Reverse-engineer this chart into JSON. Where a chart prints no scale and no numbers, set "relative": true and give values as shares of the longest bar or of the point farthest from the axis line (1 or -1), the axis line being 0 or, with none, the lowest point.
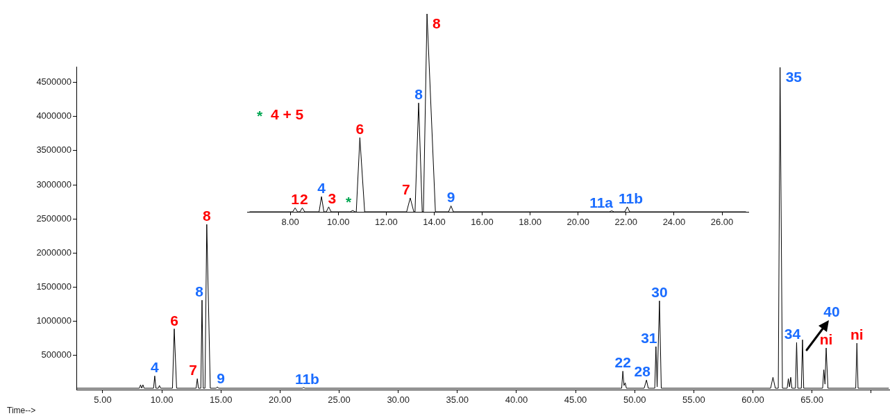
{
  "chart_data": [
    {
      "type": "line",
      "xlabel": "Time-->",
      "marker": "none",
      "series": [
        {
          "color": "#000000",
          "x": [
            2.8,
            8.1,
            8.2,
            8.3,
            8.4,
            8.5,
            9.3,
            9.4,
            9.5,
            9.7,
            9.8,
            9.9,
            10.9,
            11.05,
            11.25,
            12.9,
            13.0,
            13.1,
            13.3,
            13.4,
            13.5,
            13.65,
            13.8,
            14.1,
            14.6,
            14.7,
            14.8,
            21.9,
            22.0,
            22.1,
            48.9,
            49.0,
            49.1,
            49.2,
            49.3,
            50.8,
            51.0,
            51.15,
            51.7,
            51.8,
            51.9,
            52.1,
            52.25,
            61.5,
            61.7,
            61.9,
            62.15,
            62.3,
            62.5,
            62.9,
            63.0,
            63.1,
            63.2,
            63.3,
            63.6,
            63.7,
            63.8,
            64.1,
            64.2,
            64.3,
            65.9,
            66.0,
            66.1,
            66.2,
            66.35,
            68.7,
            68.8,
            68.9,
            71.5
          ],
          "values": [
            20000,
            20000,
            70000,
            20000,
            70000,
            20000,
            20000,
            200000,
            20000,
            20000,
            60000,
            20000,
            20000,
            890000,
            20000,
            20000,
            160000,
            20000,
            20000,
            1310000,
            20000,
            20000,
            2420000,
            20000,
            20000,
            40000,
            20000,
            20000,
            30000,
            20000,
            20000,
            270000,
            60000,
            100000,
            20000,
            20000,
            140000,
            20000,
            20000,
            630000,
            40000,
            1300000,
            20000,
            20000,
            180000,
            20000,
            20000,
            4720000,
            20000,
            20000,
            160000,
            40000,
            180000,
            20000,
            20000,
            690000,
            20000,
            20000,
            730000,
            20000,
            20000,
            290000,
            80000,
            610000,
            20000,
            20000,
            680000,
            20000,
            20000
          ]
        }
      ],
      "xlim": [
        2.77,
        71.6
      ],
      "xticks": [
        {
          "value": 5,
          "label": "5.00"
        },
        {
          "value": 10,
          "label": "10.00"
        },
        {
          "value": 15,
          "label": "15.00"
        },
        {
          "value": 20,
          "label": "20.00"
        },
        {
          "value": 25,
          "label": "25.00"
        },
        {
          "value": 30,
          "label": "30.00"
        },
        {
          "value": 35,
          "label": "35.00"
        },
        {
          "value": 40,
          "label": "40.00"
        },
        {
          "value": 45,
          "label": "45.00"
        },
        {
          "value": 50,
          "label": "50.00"
        },
        {
          "value": 55,
          "label": "55.00"
        },
        {
          "value": 60,
          "label": "60.00"
        },
        {
          "value": 65,
          "label": "65.00"
        },
        {
          "value": 70,
          "label": null
        }
      ],
      "ylim": [
        0,
        4730000
      ],
      "yticks": [
        500000,
        1000000,
        1500000,
        2000000,
        2500000,
        3000000,
        3500000,
        4000000,
        4500000
      ],
      "annotations": [
        {
          "text": "4",
          "x": 9.4,
          "y": 200000
        },
        {
          "text": "6",
          "x": 11.05,
          "y": 890000
        },
        {
          "text": "7",
          "x": 13.0,
          "y": 160000
        },
        {
          "text": "8",
          "x": 13.4,
          "y": 1310000
        },
        {
          "text": "8",
          "x": 13.8,
          "y": 2420000
        },
        {
          "text": "9",
          "x": 14.7,
          "y": 40000
        },
        {
          "text": "11b",
          "x": 22.0,
          "y": 30000
        },
        {
          "text": "22",
          "x": 49.0,
          "y": 270000
        },
        {
          "text": "28",
          "x": 51.0,
          "y": 140000
        },
        {
          "text": "31",
          "x": 51.8,
          "y": 630000
        },
        {
          "text": "30",
          "x": 52.1,
          "y": 1300000
        },
        {
          "text": "35",
          "x": 62.3,
          "y": 4720000
        },
        {
          "text": "34",
          "x": 63.7,
          "y": 690000
        },
        {
          "text": "ni",
          "x": 66.2,
          "y": 610000
        },
        {
          "text": "ni",
          "x": 68.8,
          "y": 680000
        },
        "40"
      ]
    },
    {
      "type": "line",
      "relative": true,
      "marker": "none",
      "series": [
        {
          "color": "#000000",
          "x": [
            6.3,
            8.1,
            8.2,
            8.3,
            8.4,
            8.5,
            8.6,
            9.2,
            9.3,
            9.4,
            9.5,
            9.6,
            9.7,
            10.5,
            10.6,
            10.7,
            10.75,
            10.9,
            11.1,
            12.85,
            13.0,
            13.15,
            13.2,
            13.35,
            13.5,
            13.55,
            13.7,
            14.05,
            14.6,
            14.7,
            14.8,
            21.3,
            21.4,
            21.5,
            21.95,
            22.05,
            22.15,
            27.0
          ],
          "values": [
            0,
            0,
            0.02,
            0,
            0,
            0.02,
            0,
            0,
            0.077,
            0,
            0,
            0.025,
            0,
            0,
            0.007,
            0,
            0,
            0.375,
            0,
            0,
            0.07,
            0,
            0,
            0.55,
            0,
            0,
            1,
            0,
            0,
            0.03,
            0,
            0,
            0.005,
            0,
            0,
            0.025,
            0,
            0
          ]
        }
      ],
      "xlim": [
        6.2,
        27.1
      ],
      "xticks": [
        {
          "value": 8,
          "label": "8.00"
        },
        {
          "value": 10,
          "label": "10.00"
        },
        {
          "value": 12,
          "label": "12.00"
        },
        {
          "value": 14,
          "label": "14.00"
        },
        {
          "value": 16,
          "label": "16.00"
        },
        {
          "value": 18,
          "label": "18.00"
        },
        {
          "value": 20,
          "label": "20.00"
        },
        {
          "value": 22,
          "label": "22.00"
        },
        {
          "value": 24,
          "label": "24.00"
        },
        {
          "value": 26,
          "label": "26.00"
        }
      ],
      "annotations": [
        "*",
        "4 + 5",
        {
          "text": "1",
          "x": 8.2,
          "y": 0.02
        },
        {
          "text": "2",
          "x": 8.5,
          "y": 0.02
        },
        {
          "text": "4",
          "x": 9.3,
          "y": 0.077
        },
        {
          "text": "3",
          "x": 9.6,
          "y": 0.025
        },
        {
          "text": "*",
          "x": 10.6,
          "y": 0.007
        },
        {
          "text": "6",
          "x": 10.9,
          "y": 0.375
        },
        {
          "text": "7",
          "x": 13.0,
          "y": 0.07
        },
        {
          "text": "8",
          "x": 13.35,
          "y": 0.55
        },
        {
          "text": "8",
          "x": 13.7,
          "y": 1
        },
        {
          "text": "9",
          "x": 14.7,
          "y": 0.03
        },
        {
          "text": "11a",
          "x": 21.4,
          "y": 0.005
        },
        {
          "text": "11b",
          "x": 22.05,
          "y": 0.025
        }
      ]
    }
  ]
}
